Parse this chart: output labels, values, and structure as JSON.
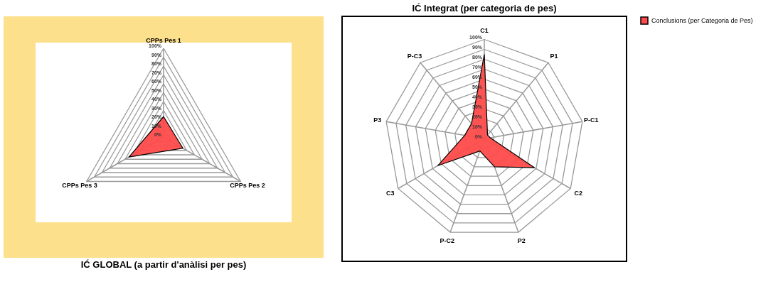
{
  "chart_data": [
    {
      "type": "radar",
      "title": "IĆ GLOBAL  (a partir d'anàlisi per pes)",
      "categories": [
        "CPPs Pes 1",
        "CPPs Pes 2",
        "CPPs Pes 3"
      ],
      "ylim": [
        0,
        100
      ],
      "yticks": [
        {
          "value": 0,
          "label": "0%"
        },
        {
          "value": 10,
          "label": "10%"
        },
        {
          "value": 20,
          "label": "20%"
        },
        {
          "value": 30,
          "label": "30%"
        },
        {
          "value": 40,
          "label": "40%"
        },
        {
          "value": 50,
          "label": "50%"
        },
        {
          "value": 60,
          "label": "60%"
        },
        {
          "value": 70,
          "label": "70%"
        },
        {
          "value": 80,
          "label": "80%"
        },
        {
          "value": 90,
          "label": "90%"
        },
        {
          "value": 100,
          "label": "100%"
        }
      ],
      "grid": true,
      "legend": false,
      "series": [
        {
          "color": "#ff4b4b",
          "values": [
            23,
            25,
            45
          ]
        }
      ]
    },
    {
      "type": "radar",
      "title": "IĆ Integrat (per categoria de pes)",
      "categories": [
        "C1",
        "P1",
        "P-C1",
        "C2",
        "P2",
        "P-C2",
        "C3",
        "P3",
        "P-C3"
      ],
      "ylim": [
        0,
        100
      ],
      "yticks": [
        {
          "value": 0,
          "label": "0%"
        },
        {
          "value": 10,
          "label": "10%"
        },
        {
          "value": 20,
          "label": "20%"
        },
        {
          "value": 30,
          "label": "30%"
        },
        {
          "value": 40,
          "label": "40%"
        },
        {
          "value": 50,
          "label": "50%"
        },
        {
          "value": 60,
          "label": "60%"
        },
        {
          "value": 70,
          "label": "70%"
        },
        {
          "value": 80,
          "label": "80%"
        },
        {
          "value": 90,
          "label": "90%"
        },
        {
          "value": 100,
          "label": "100%"
        }
      ],
      "grid": true,
      "legend": "right",
      "series": [
        {
          "name": "Conclusions (per Categoria de Pes)",
          "color": "#ff4b4b",
          "values": [
            85,
            5,
            6,
            58,
            30,
            13,
            54,
            20,
            20
          ]
        }
      ]
    }
  ]
}
